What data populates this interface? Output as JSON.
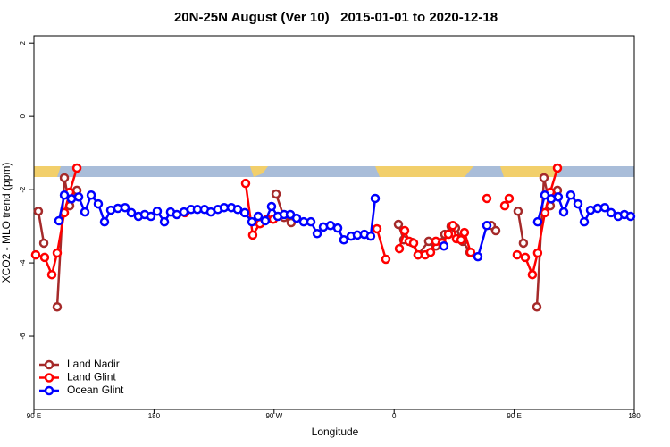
{
  "chart_data": {
    "type": "line",
    "title": "20N-25N August (Ver 10)   2015-01-01 to 2020-12-18",
    "x_label": "Longitude",
    "y_label": "XCO2 - MLO trend (ppm)",
    "xlim": [
      90,
      540
    ],
    "xticks": [
      {
        "value": 90,
        "label": "90 E"
      },
      {
        "value": 180,
        "label": "180"
      },
      {
        "value": 270,
        "label": "90 W"
      },
      {
        "value": 360,
        "label": "0"
      },
      {
        "value": 450,
        "label": "90 E"
      },
      {
        "value": 540,
        "label": "180"
      }
    ],
    "ylim": [
      -8,
      2.2
    ],
    "yticks": [
      -6,
      -4,
      -2,
      0,
      2
    ],
    "legend": "bottom-left",
    "series": [
      {
        "name": "Land Nadir",
        "color": "#a52a2a",
        "x": [
          93.3,
          97.4,
          null,
          107.4,
          112.8,
          116.8,
          122.2,
          null,
          271.5,
          277.5,
          282.8,
          null,
          363.2,
          367.2,
          373.3,
          377.9,
          385.9,
          391.3,
          398.0,
          402.7,
          406.0,
          411.4,
          416.8,
          null,
          432.8,
          436.2,
          null,
          452.9,
          456.9,
          null,
          467.0,
          472.3,
          477.0,
          482.4
        ],
        "values": [
          -2.59,
          -3.46,
          null,
          -5.2,
          -1.68,
          -2.44,
          -2.02,
          null,
          -2.12,
          -2.76,
          -2.9,
          null,
          -2.95,
          -3.37,
          -3.44,
          -3.78,
          -3.41,
          -3.54,
          -3.22,
          -3.0,
          -3.05,
          -3.41,
          -3.71,
          null,
          -2.98,
          -3.12,
          null,
          -2.59,
          -3.46,
          null,
          -5.2,
          -1.68,
          -2.44,
          -2.02
        ]
      },
      {
        "name": "Land Glint",
        "color": "#ff0000",
        "x": [
          91.3,
          98.0,
          103.4,
          107.4,
          112.8,
          116.8,
          122.2,
          null,
          203.2,
          null,
          248.7,
          254.0,
          259.4,
          264.7,
          269.4,
          null,
          347.1,
          353.8,
          null,
          363.9,
          367.9,
          371.2,
          374.6,
          377.9,
          383.3,
          387.3,
          391.3,
          396.0,
          400.7,
          404.0,
          406.7,
          410.1,
          412.7,
          417.4,
          null,
          429.5,
          null,
          442.9,
          446.2,
          null,
          452.2,
          458.3,
          463.6,
          467.6,
          473.0,
          477.0,
          482.4
        ],
        "values": [
          -3.78,
          -3.85,
          -4.32,
          -3.73,
          -2.63,
          -2.07,
          -1.41,
          null,
          -2.63,
          null,
          -1.83,
          -3.24,
          -2.93,
          -2.81,
          -2.81,
          null,
          -3.07,
          -3.9,
          null,
          -3.61,
          -3.12,
          -3.41,
          -3.46,
          -3.78,
          -3.78,
          -3.71,
          -3.41,
          -3.46,
          -3.22,
          -2.98,
          -3.34,
          -3.37,
          -3.17,
          -3.71,
          null,
          -2.24,
          null,
          -2.44,
          -2.24,
          null,
          -3.78,
          -3.85,
          -4.32,
          -3.73,
          -2.63,
          -2.07,
          -1.41
        ]
      },
      {
        "name": "Ocean Glint",
        "color": "#0000ff",
        "x": [
          108.7,
          112.8,
          118.1,
          123.5,
          128.2,
          132.9,
          138.2,
          142.9,
          147.6,
          152.9,
          158.3,
          163.0,
          168.3,
          173.0,
          177.7,
          182.4,
          187.8,
          192.4,
          197.1,
          202.5,
          207.8,
          212.5,
          217.9,
          222.6,
          227.9,
          232.6,
          238.0,
          242.7,
          248.0,
          253.4,
          258.1,
          263.4,
          268.1,
          272.8,
          277.5,
          282.2,
          286.9,
          292.2,
          297.6,
          302.3,
          307.0,
          312.3,
          317.7,
          322.3,
          327.7,
          332.4,
          337.7,
          342.4,
          345.8,
          null,
          397.3,
          null,
          422.8,
          429.5,
          null,
          467.6,
          473.0,
          477.7,
          483.0,
          487.1,
          492.4,
          497.8,
          502.5,
          507.2,
          512.5,
          517.9,
          522.6,
          527.9,
          532.6,
          537.3
        ],
        "values": [
          -2.85,
          -2.15,
          -2.25,
          -2.2,
          -2.61,
          -2.15,
          -2.39,
          -2.88,
          -2.56,
          -2.51,
          -2.49,
          -2.63,
          -2.73,
          -2.68,
          -2.73,
          -2.59,
          -2.88,
          -2.61,
          -2.68,
          -2.61,
          -2.54,
          -2.54,
          -2.54,
          -2.61,
          -2.54,
          -2.49,
          -2.49,
          -2.54,
          -2.63,
          -2.88,
          -2.73,
          -2.85,
          -2.46,
          -2.73,
          -2.68,
          -2.68,
          -2.78,
          -2.88,
          -2.88,
          -3.2,
          -3.02,
          -2.98,
          -3.05,
          -3.37,
          -3.27,
          -3.24,
          -3.22,
          -3.27,
          -2.24,
          null,
          -3.54,
          null,
          -3.83,
          -2.98,
          null,
          -2.88,
          -2.15,
          -2.25,
          -2.2,
          -2.61,
          -2.15,
          -2.39,
          -2.88,
          -2.56,
          -2.51,
          -2.49,
          -2.63,
          -2.73,
          -2.68,
          -2.73
        ]
      }
    ]
  }
}
